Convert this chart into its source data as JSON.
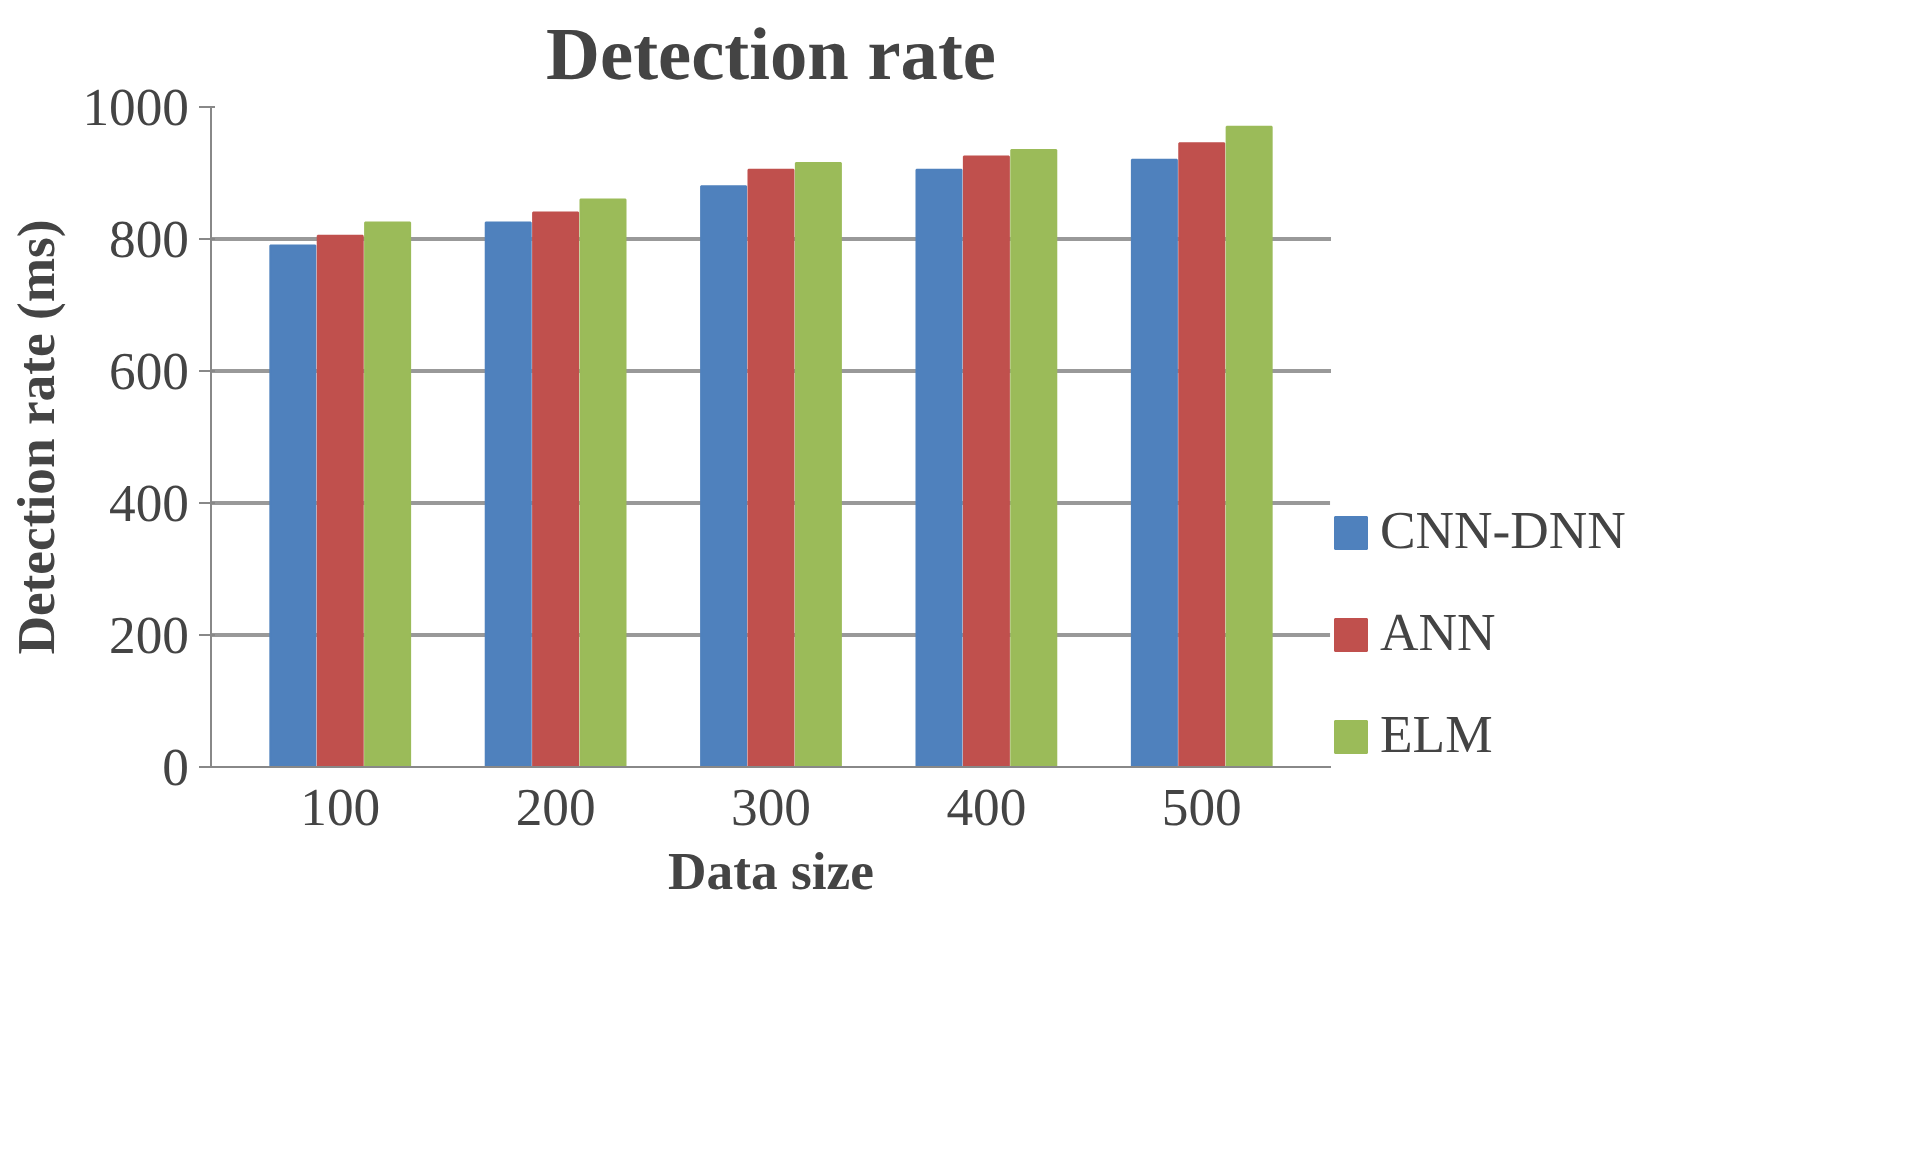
{
  "chart_data": {
    "type": "bar",
    "title": "Detection rate",
    "xlabel": "Data size",
    "ylabel": "Detection rate (ms)",
    "categories": [
      "100",
      "200",
      "300",
      "400",
      "500"
    ],
    "series": [
      {
        "name": "CNN-DNN",
        "color": "#4f81bd",
        "values": [
          790,
          825,
          880,
          905,
          920
        ]
      },
      {
        "name": "ANN",
        "color": "#c0504d",
        "values": [
          805,
          840,
          905,
          925,
          945
        ]
      },
      {
        "name": "ELM",
        "color": "#9bbb59",
        "values": [
          825,
          860,
          915,
          935,
          970
        ]
      }
    ],
    "ylim": [
      0,
      1000
    ],
    "yticks": [
      0,
      200,
      400,
      600,
      800,
      1000
    ],
    "grid": "y",
    "legend": "right"
  }
}
